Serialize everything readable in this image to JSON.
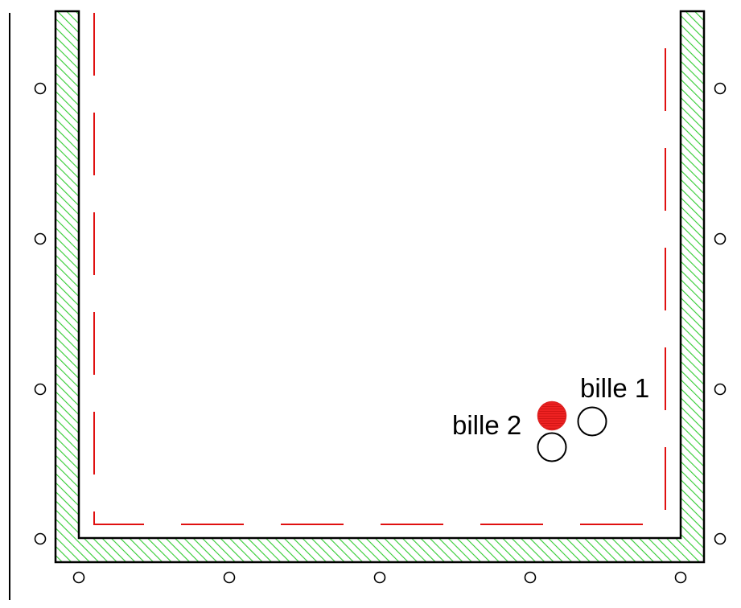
{
  "labels": {
    "ball1": "bille 1",
    "ball2": "bille 2"
  },
  "colors": {
    "wall_hatch": "#33cc33",
    "wall_border": "#000000",
    "dashed_boundary": "#e01010",
    "ball2_fill": "#ee2222",
    "marker_stroke": "#000000",
    "background": "#ffffff"
  },
  "icons": {
    "marker": "small-open-circle",
    "ball": "open-circle",
    "ball_filled": "filled-circle"
  },
  "diagram": {
    "left_markers": 4,
    "right_markers": 4,
    "bottom_markers": 5,
    "walls": [
      "left-wall",
      "right-wall",
      "bottom-wall"
    ]
  }
}
